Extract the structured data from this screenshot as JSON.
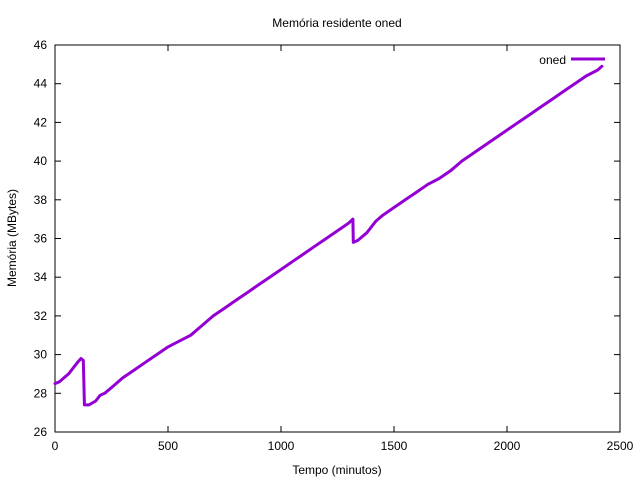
{
  "chart_data": {
    "type": "line",
    "title": "Memória residente oned",
    "xlabel": "Tempo (minutos)",
    "ylabel": "Memória (MBytes)",
    "xlim": [
      0,
      2500
    ],
    "ylim": [
      26,
      46
    ],
    "xticks": [
      0,
      500,
      1000,
      1500,
      2000,
      2500
    ],
    "yticks": [
      26,
      28,
      30,
      32,
      34,
      36,
      38,
      40,
      42,
      44,
      46
    ],
    "grid": false,
    "legend": "top-right",
    "series": [
      {
        "name": "oned",
        "color": "#9400d3",
        "x": [
          0,
          20,
          40,
          60,
          80,
          100,
          115,
          125,
          128,
          130,
          150,
          180,
          200,
          220,
          260,
          300,
          350,
          400,
          450,
          500,
          550,
          600,
          650,
          700,
          750,
          800,
          850,
          900,
          950,
          1000,
          1050,
          1100,
          1150,
          1200,
          1250,
          1300,
          1318,
          1320,
          1340,
          1380,
          1420,
          1450,
          1500,
          1550,
          1600,
          1650,
          1700,
          1750,
          1800,
          1850,
          1900,
          1950,
          2000,
          2050,
          2100,
          2150,
          2200,
          2250,
          2300,
          2350,
          2400,
          2420
        ],
        "y": [
          28.5,
          28.6,
          28.8,
          29.0,
          29.3,
          29.6,
          29.8,
          29.7,
          28.5,
          27.4,
          27.4,
          27.6,
          27.9,
          28.0,
          28.4,
          28.8,
          29.2,
          29.6,
          30.0,
          30.4,
          30.7,
          31.0,
          31.5,
          32.0,
          32.4,
          32.8,
          33.2,
          33.6,
          34.0,
          34.4,
          34.8,
          35.2,
          35.6,
          36.0,
          36.4,
          36.8,
          37.0,
          35.8,
          35.9,
          36.3,
          36.9,
          37.2,
          37.6,
          38.0,
          38.4,
          38.8,
          39.1,
          39.5,
          40.0,
          40.4,
          40.8,
          41.2,
          41.6,
          42.0,
          42.4,
          42.8,
          43.2,
          43.6,
          44.0,
          44.4,
          44.7,
          44.9
        ]
      }
    ]
  }
}
